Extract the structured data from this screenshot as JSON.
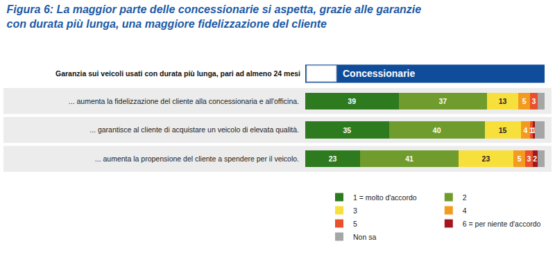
{
  "chart_data": {
    "type": "bar",
    "title": "Figura 6: La maggior parte delle concessionarie si aspetta, grazie alle garanzie con durata più lunga, una maggiore fidelizzazione del cliente",
    "subtitle": "Garanzia sui veicoli usati con durata più lunga, pari ad almeno 24 mesi",
    "annotations": [
      "Concessionarie"
    ],
    "orientation": "horizontal",
    "stacked": true,
    "data_labels": true,
    "tick_labels": "y",
    "grid": false,
    "legend": "bottom",
    "xlim": [
      0,
      100
    ],
    "categories": [
      "... aumenta la fidelizzazione del cliente alla concessionaria e all'officina.",
      "... garantisce al cliente di acquistare un veicolo di elevata qualità.",
      "... aumenta la propensione del cliente a spendere per il veicolo."
    ],
    "series": [
      {
        "name": "1 = molto d'accordo",
        "color": "#2e7a1f",
        "values": [
          39,
          35,
          23
        ]
      },
      {
        "name": "2",
        "color": "#6f9c2c",
        "values": [
          37,
          40,
          41
        ]
      },
      {
        "name": "3",
        "color": "#f8e03c",
        "values": [
          13,
          15,
          23
        ]
      },
      {
        "name": "4",
        "color": "#f39b1f",
        "values": [
          5,
          4,
          5
        ]
      },
      {
        "name": "5",
        "color": "#e8512b",
        "values": [
          3,
          1,
          3
        ]
      },
      {
        "name": "6 = per niente d'accordo",
        "color": "#a3161d",
        "values": [
          0,
          1,
          2
        ],
        "value_labels": [
          null,
          "1",
          "2"
        ]
      },
      {
        "name": "Non sa",
        "color": "#a6a6a6",
        "values": [
          3,
          4,
          3
        ],
        "value_labels": [
          null,
          null,
          null
        ]
      }
    ]
  }
}
